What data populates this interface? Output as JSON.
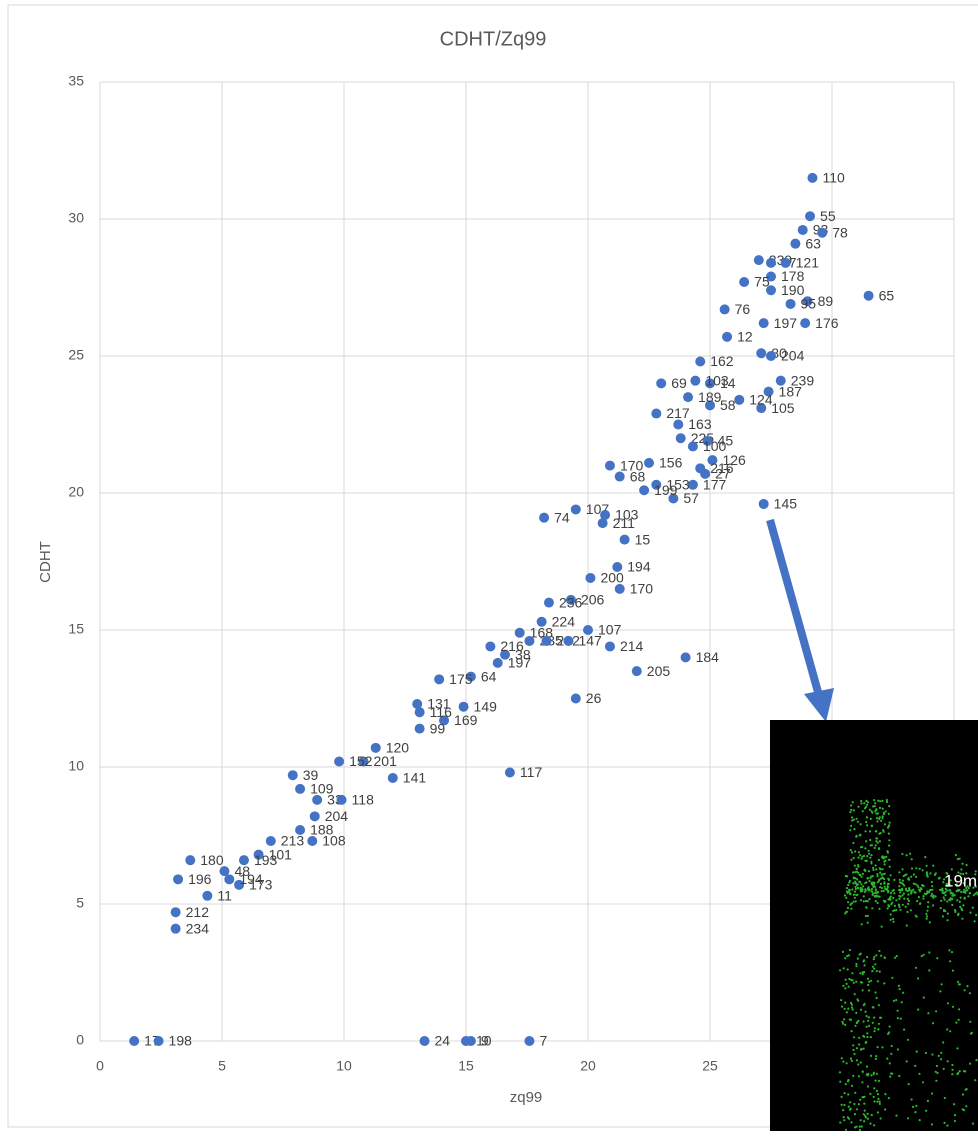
{
  "chart_data": {
    "type": "scatter",
    "title": "CDHT/Zq99",
    "x_label": "zq99",
    "y_label": "CDHT",
    "color": "#4472c4",
    "grid": true,
    "xlim": [
      0,
      35
    ],
    "ylim": [
      0,
      35
    ],
    "xticks": [
      0,
      5,
      10,
      15,
      20,
      25,
      30,
      35
    ],
    "yticks": [
      0,
      5,
      10,
      15,
      20,
      25,
      30,
      35
    ],
    "series": [
      {
        "name": "CDHT",
        "color": "#4472c4",
        "x": [
          29.2,
          29.1,
          28.8,
          29.6,
          28.5,
          27.0,
          27.5,
          28.1,
          27.5,
          27.5,
          29.0,
          31.5,
          26.4,
          25.6,
          28.3,
          28.9,
          27.2,
          25.7,
          27.1,
          27.5,
          24.6,
          27.9,
          27.4,
          27.1,
          26.2,
          25.0,
          24.1,
          23.0,
          25.0,
          24.4,
          22.8,
          23.7,
          23.8,
          24.9,
          24.3,
          25.1,
          24.6,
          24.8,
          24.3,
          27.2,
          23.5,
          22.8,
          22.5,
          20.9,
          21.3,
          22.3,
          19.5,
          20.7,
          20.6,
          18.2,
          21.5,
          21.2,
          20.1,
          21.3,
          19.3,
          18.4,
          18.1,
          17.2,
          17.6,
          18.3,
          19.2,
          20.0,
          20.9,
          24.0,
          22.0,
          19.5,
          16.6,
          16.0,
          16.3,
          15.2,
          13.9,
          14.9,
          14.1,
          13.0,
          13.1,
          13.1,
          16.8,
          12.0,
          11.3,
          10.8,
          9.8,
          7.9,
          8.2,
          8.9,
          9.9,
          8.8,
          8.2,
          7.0,
          8.7,
          6.5,
          5.9,
          3.7,
          5.1,
          5.7,
          4.4,
          3.2,
          5.3,
          3.1,
          3.1,
          1.4,
          2.4,
          13.3,
          15.0,
          15.2,
          17.6
        ],
        "values": [
          31.5,
          30.1,
          29.6,
          29.5,
          29.1,
          28.5,
          28.4,
          28.4,
          27.9,
          27.4,
          27.0,
          27.2,
          27.7,
          26.7,
          26.9,
          26.2,
          26.2,
          25.7,
          25.1,
          25.0,
          24.8,
          24.1,
          23.7,
          23.1,
          23.4,
          23.2,
          23.5,
          24.0,
          24.0,
          24.1,
          22.9,
          22.5,
          22.0,
          21.9,
          21.7,
          21.2,
          20.9,
          20.7,
          20.3,
          19.6,
          19.8,
          20.3,
          21.1,
          21.0,
          20.6,
          20.1,
          19.4,
          19.2,
          18.9,
          19.1,
          18.3,
          17.3,
          16.9,
          16.5,
          16.1,
          16.0,
          15.3,
          14.9,
          14.6,
          14.6,
          14.6,
          15.0,
          14.4,
          14.0,
          13.5,
          12.5,
          14.1,
          14.4,
          13.8,
          13.3,
          13.2,
          12.2,
          11.7,
          12.3,
          11.4,
          12.0,
          9.8,
          9.6,
          10.7,
          10.2,
          10.2,
          9.7,
          9.2,
          8.8,
          8.8,
          8.2,
          7.7,
          7.3,
          7.3,
          6.8,
          6.6,
          6.6,
          6.2,
          5.7,
          5.3,
          5.9,
          5.9,
          4.7,
          4.1,
          0,
          0,
          0,
          0,
          0,
          0
        ],
        "point_labels": [
          110,
          55,
          93,
          78,
          63,
          239,
          37,
          121,
          178,
          190,
          89,
          65,
          75,
          76,
          95,
          176,
          197,
          12,
          80,
          204,
          162,
          239,
          187,
          105,
          124,
          58,
          189,
          69,
          14,
          103,
          217,
          163,
          225,
          45,
          100,
          126,
          216,
          27,
          177,
          145,
          57,
          153,
          156,
          170,
          68,
          199,
          107,
          103,
          211,
          74,
          15,
          194,
          200,
          170,
          206,
          236,
          224,
          168,
          235,
          232,
          147,
          107,
          214,
          184,
          205,
          26,
          38,
          216,
          197,
          64,
          175,
          149,
          169,
          131,
          99,
          116,
          117,
          141,
          120,
          201,
          152,
          39,
          109,
          33,
          118,
          204,
          188,
          213,
          108,
          101,
          193,
          180,
          48,
          173,
          11,
          196,
          194,
          212,
          234,
          17,
          198,
          24,
          10,
          9,
          7
        ]
      }
    ]
  },
  "inset": {
    "label": "19m"
  }
}
